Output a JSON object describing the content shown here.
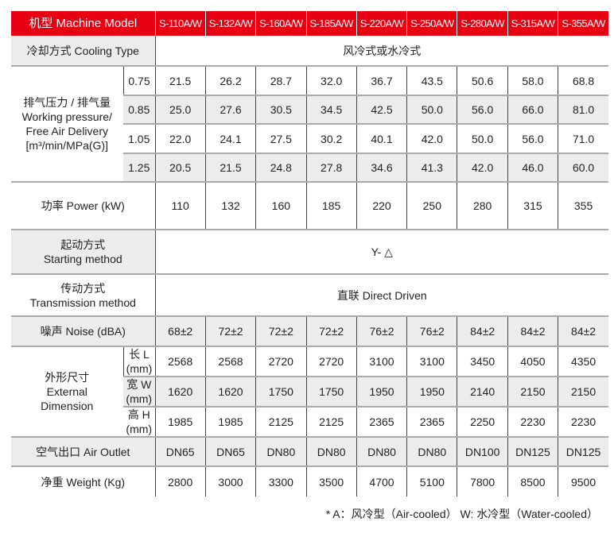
{
  "header": {
    "label": "机型 Machine Model",
    "models": [
      "S-110A/W",
      "S-132A/W",
      "S-160A/W",
      "S-185A/W",
      "S-220A/W",
      "S-250A/W",
      "S-280A/W",
      "S-315A/W",
      "S-355A/W"
    ]
  },
  "cooling": {
    "label": "冷却方式 Cooling Type",
    "value": "风冷式或水冷式"
  },
  "pressure": {
    "label_cn": "排气压力 / 排气量",
    "label_en1": "Working pressure/",
    "label_en2": "Free Air Delivery",
    "label_unit": "[m³/min/MPa(G)]",
    "rows": [
      {
        "p": "0.75",
        "values": [
          "21.5",
          "26.2",
          "28.7",
          "32.0",
          "36.7",
          "43.5",
          "50.6",
          "58.0",
          "68.8"
        ]
      },
      {
        "p": "0.85",
        "values": [
          "25.0",
          "27.6",
          "30.5",
          "34.5",
          "42.5",
          "50.0",
          "56.0",
          "66.0",
          "81.0"
        ]
      },
      {
        "p": "1.05",
        "values": [
          "22.0",
          "24.1",
          "27.5",
          "30.2",
          "40.1",
          "42.0",
          "50.0",
          "56.0",
          "71.0"
        ]
      },
      {
        "p": "1.25",
        "values": [
          "20.5",
          "21.5",
          "24.8",
          "27.8",
          "34.6",
          "41.3",
          "42.0",
          "46.0",
          "60.0"
        ]
      }
    ]
  },
  "power": {
    "label": "功率 Power (kW)",
    "values": [
      "110",
      "132",
      "160",
      "185",
      "220",
      "250",
      "280",
      "315",
      "355"
    ]
  },
  "starting": {
    "label_cn": "起动方式",
    "label_en": "Starting method",
    "value": "Y- △"
  },
  "transmission": {
    "label_cn": "传动方式",
    "label_en": "Transmission method",
    "value": "直联 Direct Driven"
  },
  "noise": {
    "label": "噪声 Noise (dBA)",
    "values": [
      "68±2",
      "72±2",
      "72±2",
      "72±2",
      "76±2",
      "76±2",
      "84±2",
      "84±2",
      "84±2"
    ]
  },
  "dimension": {
    "label_cn": "外形尺寸",
    "label_en1": "External",
    "label_en2": "Dimension",
    "rows": [
      {
        "label": "长 L (mm)",
        "values": [
          "2568",
          "2568",
          "2720",
          "2720",
          "3100",
          "3100",
          "3450",
          "4050",
          "4350"
        ]
      },
      {
        "label": "宽 W (mm)",
        "values": [
          "1620",
          "1620",
          "1750",
          "1750",
          "1950",
          "1950",
          "2140",
          "2150",
          "2150"
        ]
      },
      {
        "label": "高 H (mm)",
        "values": [
          "1985",
          "1985",
          "2125",
          "2125",
          "2365",
          "2365",
          "2250",
          "2230",
          "2230"
        ]
      }
    ]
  },
  "outlet": {
    "label": "空气出口 Air Outlet",
    "values": [
      "DN65",
      "DN65",
      "DN80",
      "DN80",
      "DN80",
      "DN80",
      "DN100",
      "DN125",
      "DN125"
    ]
  },
  "weight": {
    "label": "净重 Weight (Kg)",
    "values": [
      "2800",
      "3000",
      "3300",
      "3500",
      "4700",
      "5100",
      "7800",
      "8500",
      "9500"
    ]
  },
  "footnote": "* A：风冷型（Air-cooled）    W: 水冷型（Water-cooled）"
}
